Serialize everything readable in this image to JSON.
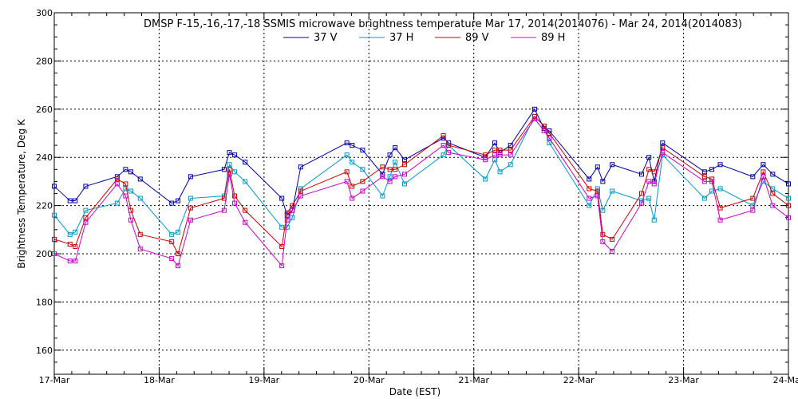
{
  "chart_data": {
    "type": "line",
    "title": "DMSP F-15,-16,-17,-18 SSMIS microwave brightness temperature Mar 17, 2014(2014076) - Mar 24, 2014(2014083)",
    "xlabel": "Date (EST)",
    "ylabel": "Brightness Temperature, Deg K",
    "xlim": [
      0,
      7
    ],
    "ylim": [
      150,
      300
    ],
    "x_ticks": [
      {
        "value": 0,
        "label": "17-Mar"
      },
      {
        "value": 1,
        "label": "18-Mar"
      },
      {
        "value": 2,
        "label": "19-Mar"
      },
      {
        "value": 3,
        "label": "20-Mar"
      },
      {
        "value": 4,
        "label": "21-Mar"
      },
      {
        "value": 5,
        "label": "22-Mar"
      },
      {
        "value": 6,
        "label": "23-Mar"
      },
      {
        "value": 7,
        "label": "24-Mar"
      }
    ],
    "y_ticks": [
      160,
      180,
      200,
      220,
      240,
      260,
      280,
      300
    ],
    "grid": true,
    "legend_position": "top-center",
    "series": [
      {
        "name": "37 V",
        "color": "#0000aa",
        "points": [
          [
            0,
            228
          ],
          [
            0.15,
            222
          ],
          [
            0.2,
            222
          ],
          [
            0.3,
            228
          ],
          [
            0.6,
            232
          ],
          [
            0.68,
            235
          ],
          [
            0.73,
            234
          ],
          [
            0.82,
            231
          ],
          [
            1.12,
            221
          ],
          [
            1.18,
            222
          ],
          [
            1.3,
            232
          ],
          [
            1.62,
            235
          ],
          [
            1.67,
            242
          ],
          [
            1.72,
            241
          ],
          [
            1.82,
            238
          ],
          [
            2.17,
            223
          ],
          [
            2.22,
            216
          ],
          [
            2.27,
            218
          ],
          [
            2.35,
            236
          ],
          [
            2.79,
            246
          ],
          [
            2.84,
            245
          ],
          [
            2.94,
            243
          ],
          [
            3.13,
            233
          ],
          [
            3.2,
            241
          ],
          [
            3.25,
            244
          ],
          [
            3.34,
            239
          ],
          [
            3.71,
            248
          ],
          [
            3.76,
            246
          ],
          [
            4.11,
            240
          ],
          [
            4.2,
            246
          ],
          [
            4.25,
            242
          ],
          [
            4.35,
            245
          ],
          [
            4.58,
            260
          ],
          [
            4.67,
            252
          ],
          [
            4.72,
            251
          ],
          [
            5.1,
            231
          ],
          [
            5.18,
            236
          ],
          [
            5.23,
            230
          ],
          [
            5.32,
            237
          ],
          [
            5.6,
            233
          ],
          [
            5.67,
            240
          ],
          [
            5.72,
            230
          ],
          [
            5.8,
            246
          ],
          [
            6.2,
            234
          ],
          [
            6.27,
            235
          ],
          [
            6.35,
            237
          ],
          [
            6.66,
            232
          ],
          [
            6.76,
            237
          ],
          [
            6.85,
            233
          ],
          [
            7.0,
            229
          ]
        ]
      },
      {
        "name": "37 H",
        "color": "#0099cc",
        "points": [
          [
            0,
            216
          ],
          [
            0.15,
            208
          ],
          [
            0.2,
            209
          ],
          [
            0.3,
            218
          ],
          [
            0.6,
            221
          ],
          [
            0.68,
            227
          ],
          [
            0.73,
            226
          ],
          [
            0.82,
            223
          ],
          [
            1.12,
            208
          ],
          [
            1.18,
            209
          ],
          [
            1.3,
            223
          ],
          [
            1.62,
            224
          ],
          [
            1.67,
            237
          ],
          [
            1.72,
            234
          ],
          [
            1.82,
            230
          ],
          [
            2.17,
            211
          ],
          [
            2.22,
            211
          ],
          [
            2.27,
            215
          ],
          [
            2.35,
            227
          ],
          [
            2.79,
            241
          ],
          [
            2.84,
            238
          ],
          [
            2.94,
            235
          ],
          [
            3.13,
            224
          ],
          [
            3.2,
            232
          ],
          [
            3.25,
            238
          ],
          [
            3.34,
            229
          ],
          [
            3.71,
            241
          ],
          [
            3.76,
            245
          ],
          [
            4.11,
            231
          ],
          [
            4.2,
            239
          ],
          [
            4.25,
            234
          ],
          [
            4.35,
            237
          ],
          [
            4.58,
            257
          ],
          [
            4.67,
            253
          ],
          [
            4.72,
            246
          ],
          [
            5.1,
            220
          ],
          [
            5.18,
            227
          ],
          [
            5.23,
            218
          ],
          [
            5.32,
            226
          ],
          [
            5.6,
            222
          ],
          [
            5.67,
            223
          ],
          [
            5.72,
            214
          ],
          [
            5.8,
            241
          ],
          [
            6.2,
            223
          ],
          [
            6.27,
            226
          ],
          [
            6.35,
            227
          ],
          [
            6.66,
            220
          ],
          [
            6.76,
            230
          ],
          [
            6.85,
            227
          ],
          [
            7.0,
            223
          ]
        ]
      },
      {
        "name": "89 V",
        "color": "#cc0000",
        "points": [
          [
            0,
            206
          ],
          [
            0.15,
            204
          ],
          [
            0.2,
            203
          ],
          [
            0.3,
            215
          ],
          [
            0.6,
            231
          ],
          [
            0.68,
            229
          ],
          [
            0.73,
            218
          ],
          [
            0.82,
            208
          ],
          [
            1.12,
            205
          ],
          [
            1.18,
            200
          ],
          [
            1.3,
            219
          ],
          [
            1.62,
            223
          ],
          [
            1.67,
            235
          ],
          [
            1.72,
            224
          ],
          [
            1.82,
            218
          ],
          [
            2.17,
            203
          ],
          [
            2.22,
            217
          ],
          [
            2.27,
            220
          ],
          [
            2.35,
            226
          ],
          [
            2.79,
            234
          ],
          [
            2.84,
            228
          ],
          [
            2.94,
            230
          ],
          [
            3.13,
            236
          ],
          [
            3.2,
            235
          ],
          [
            3.25,
            235
          ],
          [
            3.34,
            237
          ],
          [
            3.71,
            249
          ],
          [
            3.76,
            245
          ],
          [
            4.11,
            241
          ],
          [
            4.2,
            243
          ],
          [
            4.25,
            243
          ],
          [
            4.35,
            243
          ],
          [
            4.58,
            257
          ],
          [
            4.67,
            253
          ],
          [
            4.72,
            250
          ],
          [
            5.1,
            227
          ],
          [
            5.18,
            226
          ],
          [
            5.23,
            208
          ],
          [
            5.32,
            206
          ],
          [
            5.6,
            225
          ],
          [
            5.67,
            235
          ],
          [
            5.72,
            234
          ],
          [
            5.8,
            244
          ],
          [
            6.2,
            232
          ],
          [
            6.27,
            231
          ],
          [
            6.35,
            219
          ],
          [
            6.66,
            223
          ],
          [
            6.76,
            234
          ],
          [
            6.85,
            225
          ],
          [
            7.0,
            220
          ]
        ]
      },
      {
        "name": "89 H",
        "color": "#cc00cc",
        "points": [
          [
            0,
            200
          ],
          [
            0.15,
            197
          ],
          [
            0.2,
            197
          ],
          [
            0.3,
            213
          ],
          [
            0.6,
            229
          ],
          [
            0.68,
            224
          ],
          [
            0.73,
            214
          ],
          [
            0.82,
            202
          ],
          [
            1.12,
            198
          ],
          [
            1.18,
            195
          ],
          [
            1.3,
            214
          ],
          [
            1.62,
            218
          ],
          [
            1.67,
            233
          ],
          [
            1.72,
            221
          ],
          [
            1.82,
            213
          ],
          [
            2.17,
            195
          ],
          [
            2.22,
            214
          ],
          [
            2.27,
            218
          ],
          [
            2.35,
            224
          ],
          [
            2.79,
            230
          ],
          [
            2.84,
            223
          ],
          [
            2.94,
            226
          ],
          [
            3.13,
            232
          ],
          [
            3.2,
            230
          ],
          [
            3.25,
            232
          ],
          [
            3.34,
            233
          ],
          [
            3.71,
            245
          ],
          [
            3.76,
            242
          ],
          [
            4.11,
            239
          ],
          [
            4.2,
            241
          ],
          [
            4.25,
            241
          ],
          [
            4.35,
            241
          ],
          [
            4.58,
            256
          ],
          [
            4.67,
            251
          ],
          [
            4.72,
            248
          ],
          [
            5.1,
            223
          ],
          [
            5.18,
            224
          ],
          [
            5.23,
            205
          ],
          [
            5.32,
            201
          ],
          [
            5.6,
            221
          ],
          [
            5.67,
            230
          ],
          [
            5.72,
            229
          ],
          [
            5.8,
            242
          ],
          [
            6.2,
            230
          ],
          [
            6.27,
            230
          ],
          [
            6.35,
            214
          ],
          [
            6.66,
            218
          ],
          [
            6.76,
            232
          ],
          [
            6.85,
            220
          ],
          [
            7.0,
            215
          ]
        ]
      }
    ]
  }
}
